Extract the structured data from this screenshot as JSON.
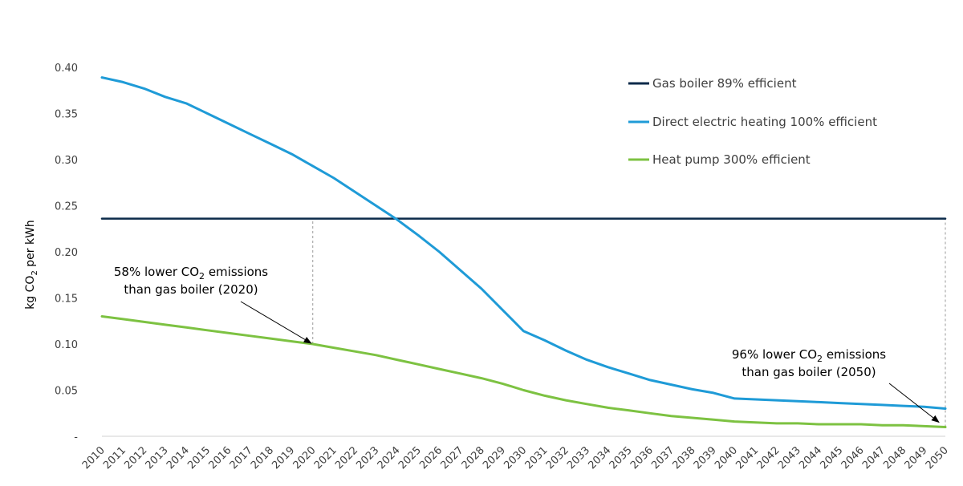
{
  "chart_data": {
    "type": "line",
    "title": "",
    "xlabel": "",
    "ylabel": "kg CO2 per kWh",
    "ylabel_parts": {
      "pre": "kg CO",
      "sub": "2",
      "post": " per kWh"
    },
    "ylim": [
      0,
      0.4
    ],
    "yticks": [
      {
        "value": 0,
        "label": "-"
      },
      {
        "value": 0.05,
        "label": "0.05"
      },
      {
        "value": 0.1,
        "label": "0.10"
      },
      {
        "value": 0.15,
        "label": "0.15"
      },
      {
        "value": 0.2,
        "label": "0.20"
      },
      {
        "value": 0.25,
        "label": "0.25"
      },
      {
        "value": 0.3,
        "label": "0.30"
      },
      {
        "value": 0.35,
        "label": "0.35"
      },
      {
        "value": 0.4,
        "label": "0.40"
      }
    ],
    "x": [
      2010,
      2011,
      2012,
      2013,
      2014,
      2015,
      2016,
      2017,
      2018,
      2019,
      2020,
      2021,
      2022,
      2023,
      2024,
      2025,
      2026,
      2027,
      2028,
      2029,
      2030,
      2031,
      2032,
      2033,
      2034,
      2035,
      2036,
      2037,
      2038,
      2039,
      2040,
      2041,
      2042,
      2043,
      2044,
      2045,
      2046,
      2047,
      2048,
      2049,
      2050
    ],
    "series": [
      {
        "name": "Gas boiler 89% efficient",
        "color": "#0b2a4a",
        "values": [
          0.236,
          0.236,
          0.236,
          0.236,
          0.236,
          0.236,
          0.236,
          0.236,
          0.236,
          0.236,
          0.236,
          0.236,
          0.236,
          0.236,
          0.236,
          0.236,
          0.236,
          0.236,
          0.236,
          0.236,
          0.236,
          0.236,
          0.236,
          0.236,
          0.236,
          0.236,
          0.236,
          0.236,
          0.236,
          0.236,
          0.236,
          0.236,
          0.236,
          0.236,
          0.236,
          0.236,
          0.236,
          0.236,
          0.236,
          0.236,
          0.236
        ]
      },
      {
        "name": "Direct electric heating 100% efficient",
        "color": "#1f9bd7",
        "values": [
          0.389,
          0.384,
          0.377,
          0.368,
          0.361,
          0.35,
          0.339,
          0.328,
          0.317,
          0.306,
          0.293,
          0.28,
          0.265,
          0.25,
          0.235,
          0.218,
          0.2,
          0.18,
          0.16,
          0.137,
          0.114,
          0.104,
          0.093,
          0.083,
          0.075,
          0.068,
          0.061,
          0.056,
          0.051,
          0.047,
          0.041,
          0.04,
          0.039,
          0.038,
          0.037,
          0.036,
          0.035,
          0.034,
          0.033,
          0.032,
          0.03
        ]
      },
      {
        "name": "Heat pump 300% efficient",
        "color": "#7dc242",
        "values": [
          0.13,
          0.127,
          0.124,
          0.121,
          0.118,
          0.115,
          0.112,
          0.109,
          0.106,
          0.103,
          0.1,
          0.096,
          0.092,
          0.088,
          0.083,
          0.078,
          0.073,
          0.068,
          0.063,
          0.057,
          0.05,
          0.044,
          0.039,
          0.035,
          0.031,
          0.028,
          0.025,
          0.022,
          0.02,
          0.018,
          0.016,
          0.015,
          0.014,
          0.014,
          0.013,
          0.013,
          0.013,
          0.012,
          0.012,
          0.011,
          0.01
        ]
      }
    ],
    "legend": "top-right",
    "annotations": [
      {
        "id": "2020",
        "line1_pre": "58% lower CO",
        "line1_sub": "2",
        "line1_post": " emissions",
        "line2": "than gas boiler (2020)",
        "target_x": 2020,
        "target_y": 0.1
      },
      {
        "id": "2050",
        "line1_pre": "96% lower CO",
        "line1_sub": "2",
        "line1_post": " emissions",
        "line2": "than gas boiler (2050)",
        "target_x": 2050,
        "target_y": 0.01
      }
    ],
    "reference_lines": [
      {
        "x": 2020,
        "from": 0.1,
        "to": 0.236
      },
      {
        "x": 2050,
        "from": 0.01,
        "to": 0.236
      }
    ]
  }
}
